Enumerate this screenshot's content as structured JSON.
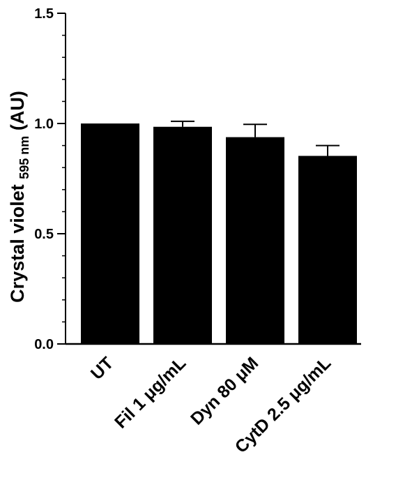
{
  "chart_data": {
    "type": "bar",
    "categories": [
      "UT",
      "Fil 1 μg/mL",
      "Dyn 80 μM",
      "CytD 2.5 μg/mL"
    ],
    "values": [
      1.0,
      0.985,
      0.938,
      0.853
    ],
    "errors": [
      0.0,
      0.025,
      0.058,
      0.047
    ],
    "ylabel": "Crystal violet",
    "ylabel_subscript": "595 nm",
    "ylabel_unit": "(AU)",
    "ylim": [
      0,
      1.5
    ],
    "yticks": [
      "0.0",
      "0.5",
      "1.0",
      "1.5"
    ],
    "ytick_values": [
      0,
      0.5,
      1.0,
      1.5
    ],
    "minor_tick_step": 0.1,
    "bar_color": "#000000",
    "grid": false
  }
}
